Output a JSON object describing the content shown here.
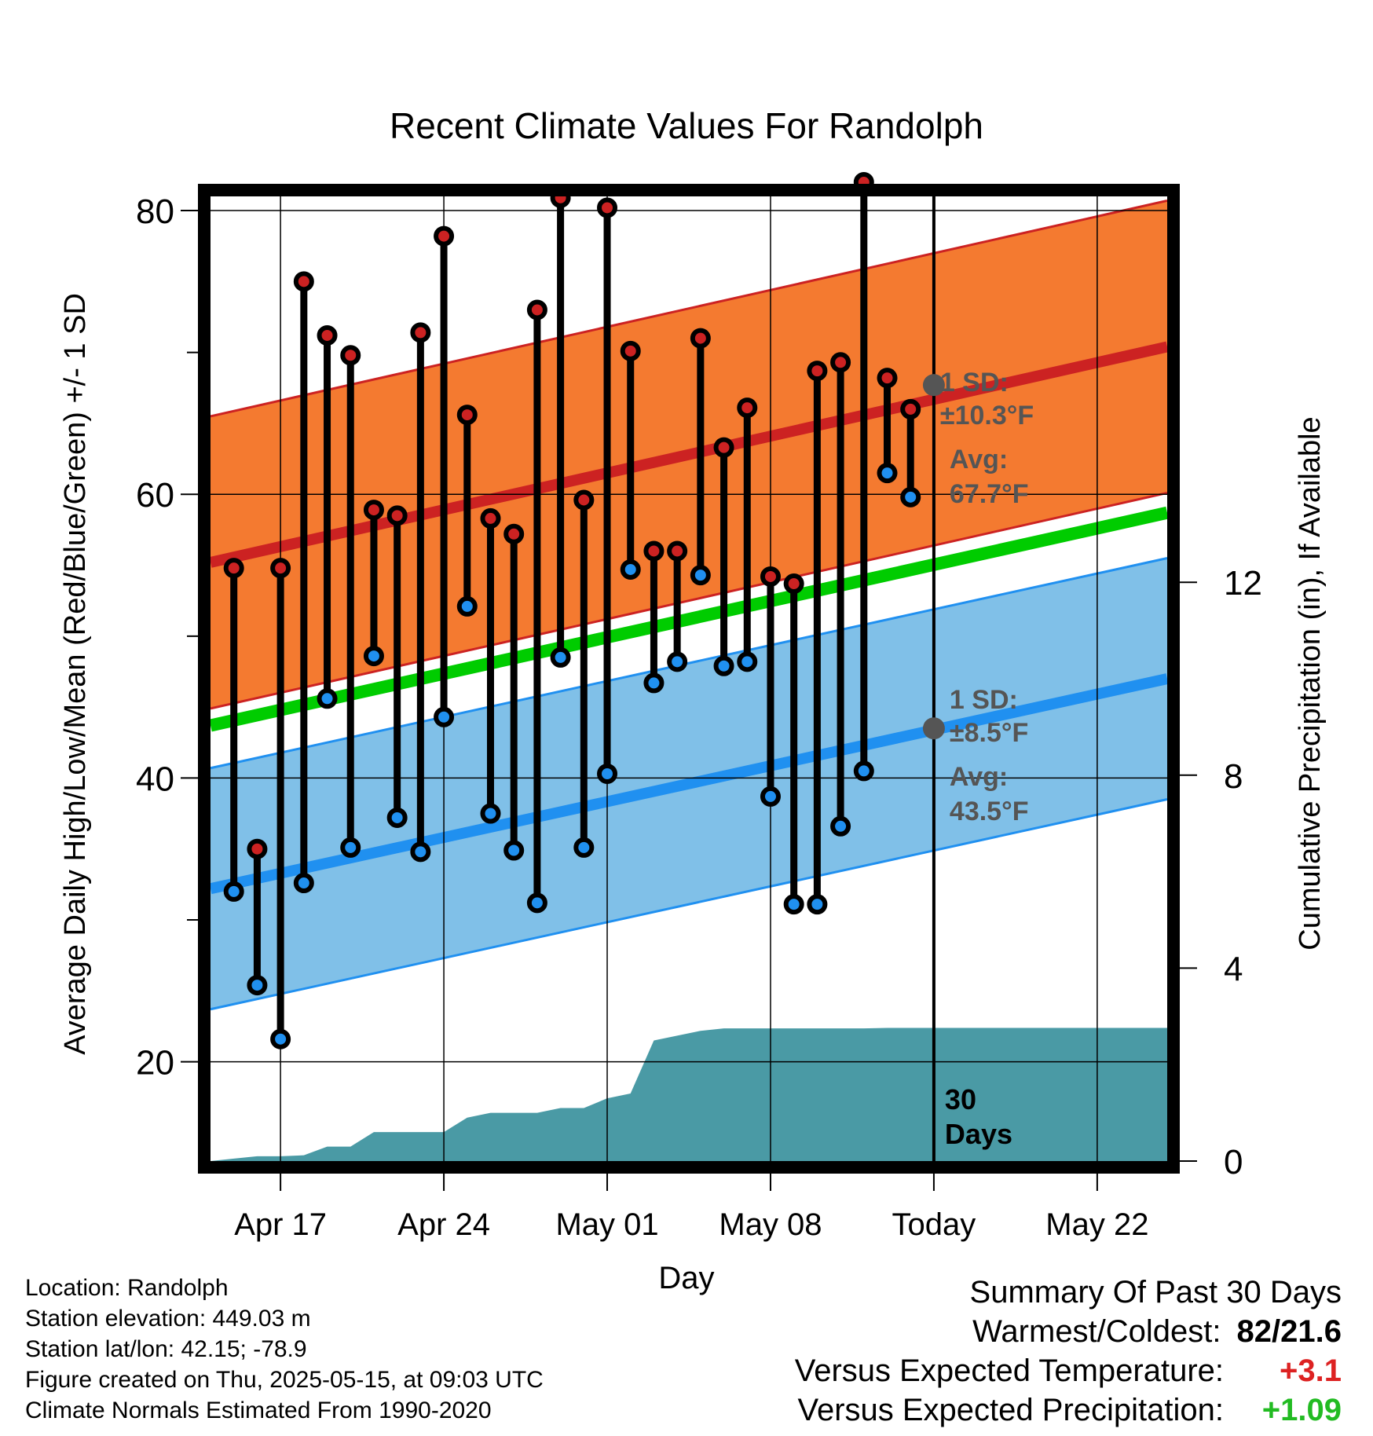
{
  "chart_data": {
    "type": "line",
    "title": "Recent Climate Values For Randolph",
    "xlabel": "Day",
    "ylabel": "Average Daily High/Low/Mean (Red/Blue/Green) +/- 1 SD",
    "y2label": "Cumulative Precipitation (in), If Available",
    "x_tick_labels": [
      "Apr 17",
      "Apr 24",
      "May 01",
      "May 08",
      "Today",
      "May 22"
    ],
    "x_tick_days": [
      3,
      10,
      17,
      24,
      31,
      38
    ],
    "xlim_days": [
      0,
      41
    ],
    "ylim": [
      13,
      81
    ],
    "y_ticks": [
      20,
      40,
      60,
      80
    ],
    "y2lim": [
      0,
      20
    ],
    "y2_ticks": [
      0,
      4,
      8,
      12
    ],
    "grid": true,
    "today_day": 31,
    "today_label": "30\nDays",
    "daily_high": [
      54.8,
      35.0,
      54.8,
      75.0,
      71.2,
      69.8,
      58.9,
      58.5,
      71.4,
      78.2,
      65.6,
      58.3,
      57.2,
      73.0,
      80.9,
      59.6,
      80.2,
      70.1,
      56.0,
      56.0,
      71.0,
      63.3,
      66.1,
      54.2,
      53.7,
      68.7,
      69.3,
      82.0,
      68.2,
      66.0
    ],
    "daily_low": [
      32.0,
      25.4,
      21.6,
      32.6,
      45.6,
      35.1,
      48.6,
      37.2,
      34.8,
      44.3,
      52.1,
      37.5,
      34.9,
      31.2,
      48.5,
      35.1,
      40.3,
      54.7,
      46.7,
      48.2,
      54.3,
      47.9,
      48.2,
      38.7,
      31.1,
      31.1,
      36.6,
      40.5,
      61.5,
      59.8
    ],
    "normal_high": {
      "start": 55.2,
      "end": 70.4
    },
    "normal_low": {
      "start": 32.2,
      "end": 47.0
    },
    "normal_mean": {
      "start": 43.7,
      "end": 58.7
    },
    "high_sd": 10.3,
    "low_sd": 8.5,
    "today_avg_high": 67.7,
    "today_avg_low": 43.5,
    "cumulative_precip": [
      0.0,
      0.05,
      0.1,
      0.1,
      0.12,
      0.3,
      0.3,
      0.6,
      0.6,
      0.6,
      0.6,
      0.9,
      1.0,
      1.0,
      1.0,
      1.1,
      1.1,
      1.3,
      1.4,
      2.5,
      2.6,
      2.7,
      2.75,
      2.75,
      2.75,
      2.75,
      2.75,
      2.75,
      2.75,
      2.76,
      2.76
    ],
    "annotations": {
      "high_sd_label": "1 SD:",
      "high_sd_value": "±10.3°F",
      "high_avg_label": "Avg:",
      "high_avg_value": "67.7°F",
      "low_sd_label": "1 SD:",
      "low_sd_value": "±8.5°F",
      "low_avg_label": "Avg:",
      "low_avg_value": "43.5°F"
    }
  },
  "colors": {
    "high_band": "#f47a30",
    "high_line": "#cc2222",
    "low_band": "#80c0e8",
    "low_line": "#2090f0",
    "mean_line": "#00cc00",
    "precip_fill": "#4a9aa5",
    "high_dot": "#cc2222",
    "low_dot": "#2090f0",
    "annotation_text": "#555555",
    "warm_value": "#dd2222",
    "precip_value": "#22bb22"
  },
  "footer": {
    "location": "Location: Randolph",
    "elevation": "Station elevation: 449.03 m",
    "latlon": "Station lat/lon: 42.15; -78.9",
    "created": "Figure created on Thu, 2025-05-15, at 09:03 UTC",
    "normals": "Climate Normals Estimated From 1990-2020"
  },
  "summary": {
    "title": "Summary Of Past 30 Days",
    "warmest_coldest_label": "Warmest/Coldest:",
    "warmest_coldest_value": "82/21.6",
    "temp_label": "Versus Expected Temperature:",
    "temp_value": "+3.1",
    "precip_label": "Versus Expected Precipitation:",
    "precip_value": "+1.09"
  }
}
